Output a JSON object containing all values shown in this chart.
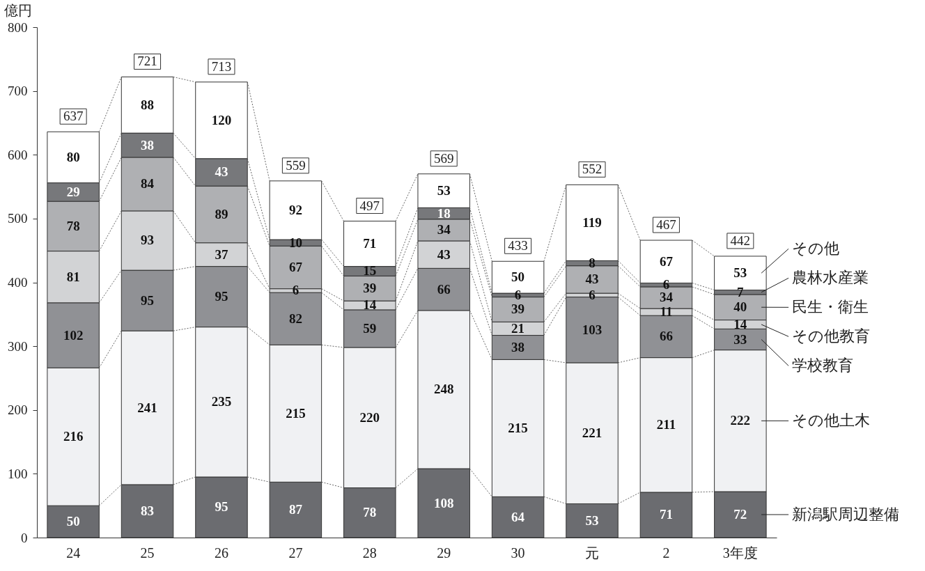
{
  "chart_data": {
    "type": "bar",
    "stacked": true,
    "ylabel": "億円",
    "categories": [
      "24",
      "25",
      "26",
      "27",
      "28",
      "29",
      "30",
      "元",
      "2",
      "3年度"
    ],
    "ylim": [
      0,
      800
    ],
    "yticks": [
      0,
      100,
      200,
      300,
      400,
      500,
      600,
      700,
      800
    ],
    "series": [
      {
        "name": "新潟駅周辺整備",
        "color": "#6b6c70",
        "values": [
          50,
          83,
          95,
          87,
          78,
          108,
          64,
          53,
          71,
          72
        ]
      },
      {
        "name": "その他土木",
        "color": "#f0f1f3",
        "values": [
          216,
          241,
          235,
          215,
          220,
          248,
          215,
          221,
          211,
          222
        ]
      },
      {
        "name": "学校教育",
        "color": "#909195",
        "values": [
          102,
          95,
          95,
          82,
          59,
          66,
          38,
          103,
          66,
          33
        ]
      },
      {
        "name": "その他教育",
        "color": "#d2d3d5",
        "values": [
          81,
          93,
          37,
          6,
          14,
          43,
          21,
          6,
          11,
          14
        ]
      },
      {
        "name": "民生・衛生",
        "color": "#afb0b3",
        "values": [
          78,
          84,
          89,
          67,
          39,
          34,
          39,
          43,
          34,
          40
        ]
      },
      {
        "name": "農林水産業",
        "color": "#77787b",
        "values": [
          29,
          38,
          43,
          10,
          15,
          18,
          6,
          8,
          6,
          7
        ]
      },
      {
        "name": "その他",
        "color": "#ffffff",
        "values": [
          80,
          88,
          120,
          92,
          71,
          53,
          50,
          119,
          67,
          53
        ]
      }
    ],
    "data_labels": true,
    "totals": [
      "637",
      "721",
      "713",
      "559",
      "497",
      "569",
      "433",
      "552",
      "467",
      "442"
    ]
  }
}
